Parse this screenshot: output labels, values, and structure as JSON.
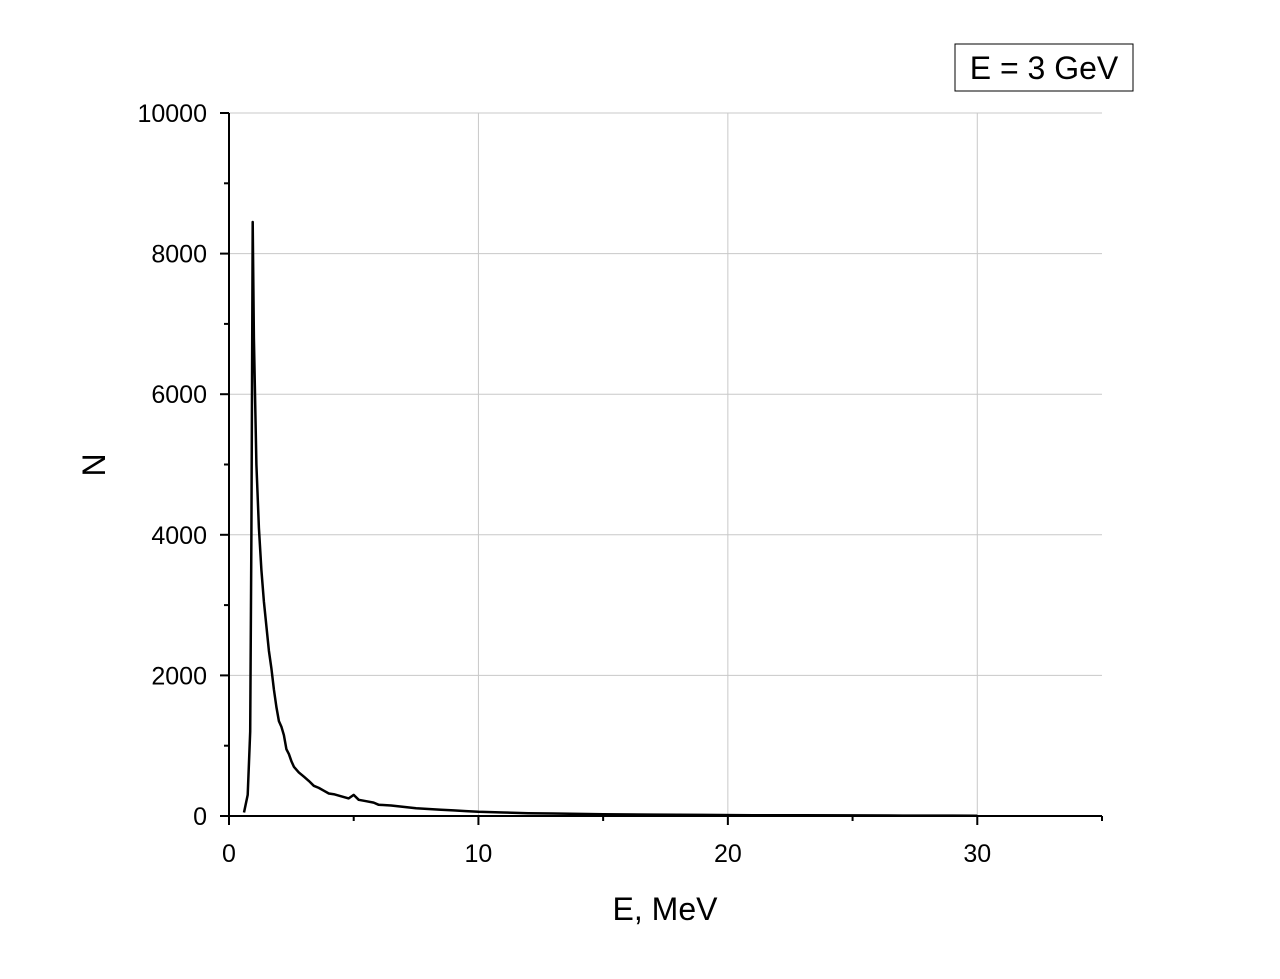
{
  "legend_label": "E = 3 GeV",
  "chart_data": {
    "type": "line",
    "title": "",
    "xlabel": "E, MeV",
    "ylabel": "N",
    "xlim": [
      0,
      35
    ],
    "ylim": [
      0,
      10000
    ],
    "xticks": [
      0,
      10,
      20,
      30
    ],
    "yticks": [
      0,
      2000,
      4000,
      6000,
      8000,
      10000
    ],
    "xtick_labels": [
      "0",
      "10",
      "20",
      "30"
    ],
    "ytick_labels": [
      "0",
      "2000",
      "4000",
      "6000",
      "8000",
      "10000"
    ],
    "grid": true,
    "legend_position": "top-right",
    "colors": {
      "line": "#000000",
      "grid": "#c8c8c8",
      "axis": "#000000"
    },
    "series": [
      {
        "name": "E = 3 GeV",
        "x": [
          0.6,
          0.75,
          0.85,
          0.9,
          0.95,
          1.0,
          1.1,
          1.2,
          1.3,
          1.4,
          1.5,
          1.6,
          1.7,
          1.8,
          1.9,
          2.0,
          2.1,
          2.2,
          2.3,
          2.4,
          2.5,
          2.6,
          2.8,
          3.0,
          3.2,
          3.4,
          3.6,
          3.8,
          4.0,
          4.2,
          4.5,
          4.8,
          5.0,
          5.2,
          5.5,
          5.8,
          6.0,
          6.5,
          7.0,
          7.5,
          8.0,
          8.5,
          9.0,
          9.5,
          10.0,
          11.0,
          12.0,
          13.0,
          14.0,
          15.0,
          17.0,
          19.0,
          21.0,
          23.0,
          25.0,
          27.0,
          29.0,
          30.0
        ],
        "y": [
          50,
          300,
          1200,
          4000,
          8450,
          6800,
          5000,
          4100,
          3500,
          3050,
          2700,
          2350,
          2100,
          1800,
          1550,
          1350,
          1270,
          1150,
          950,
          880,
          780,
          700,
          620,
          560,
          500,
          430,
          400,
          360,
          320,
          310,
          280,
          250,
          300,
          230,
          210,
          190,
          160,
          150,
          130,
          110,
          100,
          90,
          80,
          70,
          60,
          50,
          40,
          35,
          30,
          25,
          20,
          15,
          12,
          10,
          8,
          6,
          5,
          4
        ]
      }
    ]
  }
}
